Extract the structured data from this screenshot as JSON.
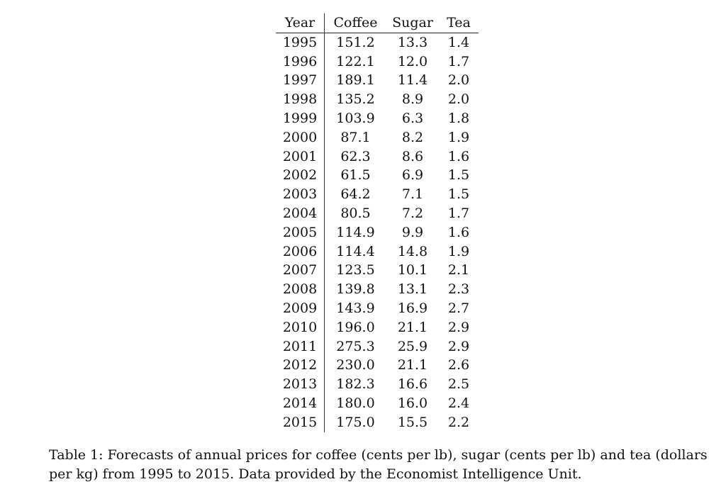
{
  "table": {
    "headers": [
      "Year",
      "Coffee",
      "Sugar",
      "Tea"
    ],
    "rows": [
      [
        "1995",
        "151.2",
        "13.3",
        "1.4"
      ],
      [
        "1996",
        "122.1",
        "12.0",
        "1.7"
      ],
      [
        "1997",
        "189.1",
        "11.4",
        "2.0"
      ],
      [
        "1998",
        "135.2",
        "8.9",
        "2.0"
      ],
      [
        "1999",
        "103.9",
        "6.3",
        "1.8"
      ],
      [
        "2000",
        "87.1",
        "8.2",
        "1.9"
      ],
      [
        "2001",
        "62.3",
        "8.6",
        "1.6"
      ],
      [
        "2002",
        "61.5",
        "6.9",
        "1.5"
      ],
      [
        "2003",
        "64.2",
        "7.1",
        "1.5"
      ],
      [
        "2004",
        "80.5",
        "7.2",
        "1.7"
      ],
      [
        "2005",
        "114.9",
        "9.9",
        "1.6"
      ],
      [
        "2006",
        "114.4",
        "14.8",
        "1.9"
      ],
      [
        "2007",
        "123.5",
        "10.1",
        "2.1"
      ],
      [
        "2008",
        "139.8",
        "13.1",
        "2.3"
      ],
      [
        "2009",
        "143.9",
        "16.9",
        "2.7"
      ],
      [
        "2010",
        "196.0",
        "21.1",
        "2.9"
      ],
      [
        "2011",
        "275.3",
        "25.9",
        "2.9"
      ],
      [
        "2012",
        "230.0",
        "21.1",
        "2.6"
      ],
      [
        "2013",
        "182.3",
        "16.6",
        "2.5"
      ],
      [
        "2014",
        "180.0",
        "16.0",
        "2.4"
      ],
      [
        "2015",
        "175.0",
        "15.5",
        "2.2"
      ]
    ]
  },
  "caption": "Table 1: Forecasts of annual prices for coffee (cents per lb), sugar (cents per lb) and tea (dollars per kg) from 1995 to 2015. Data provided by the Economist Intelligence Unit."
}
